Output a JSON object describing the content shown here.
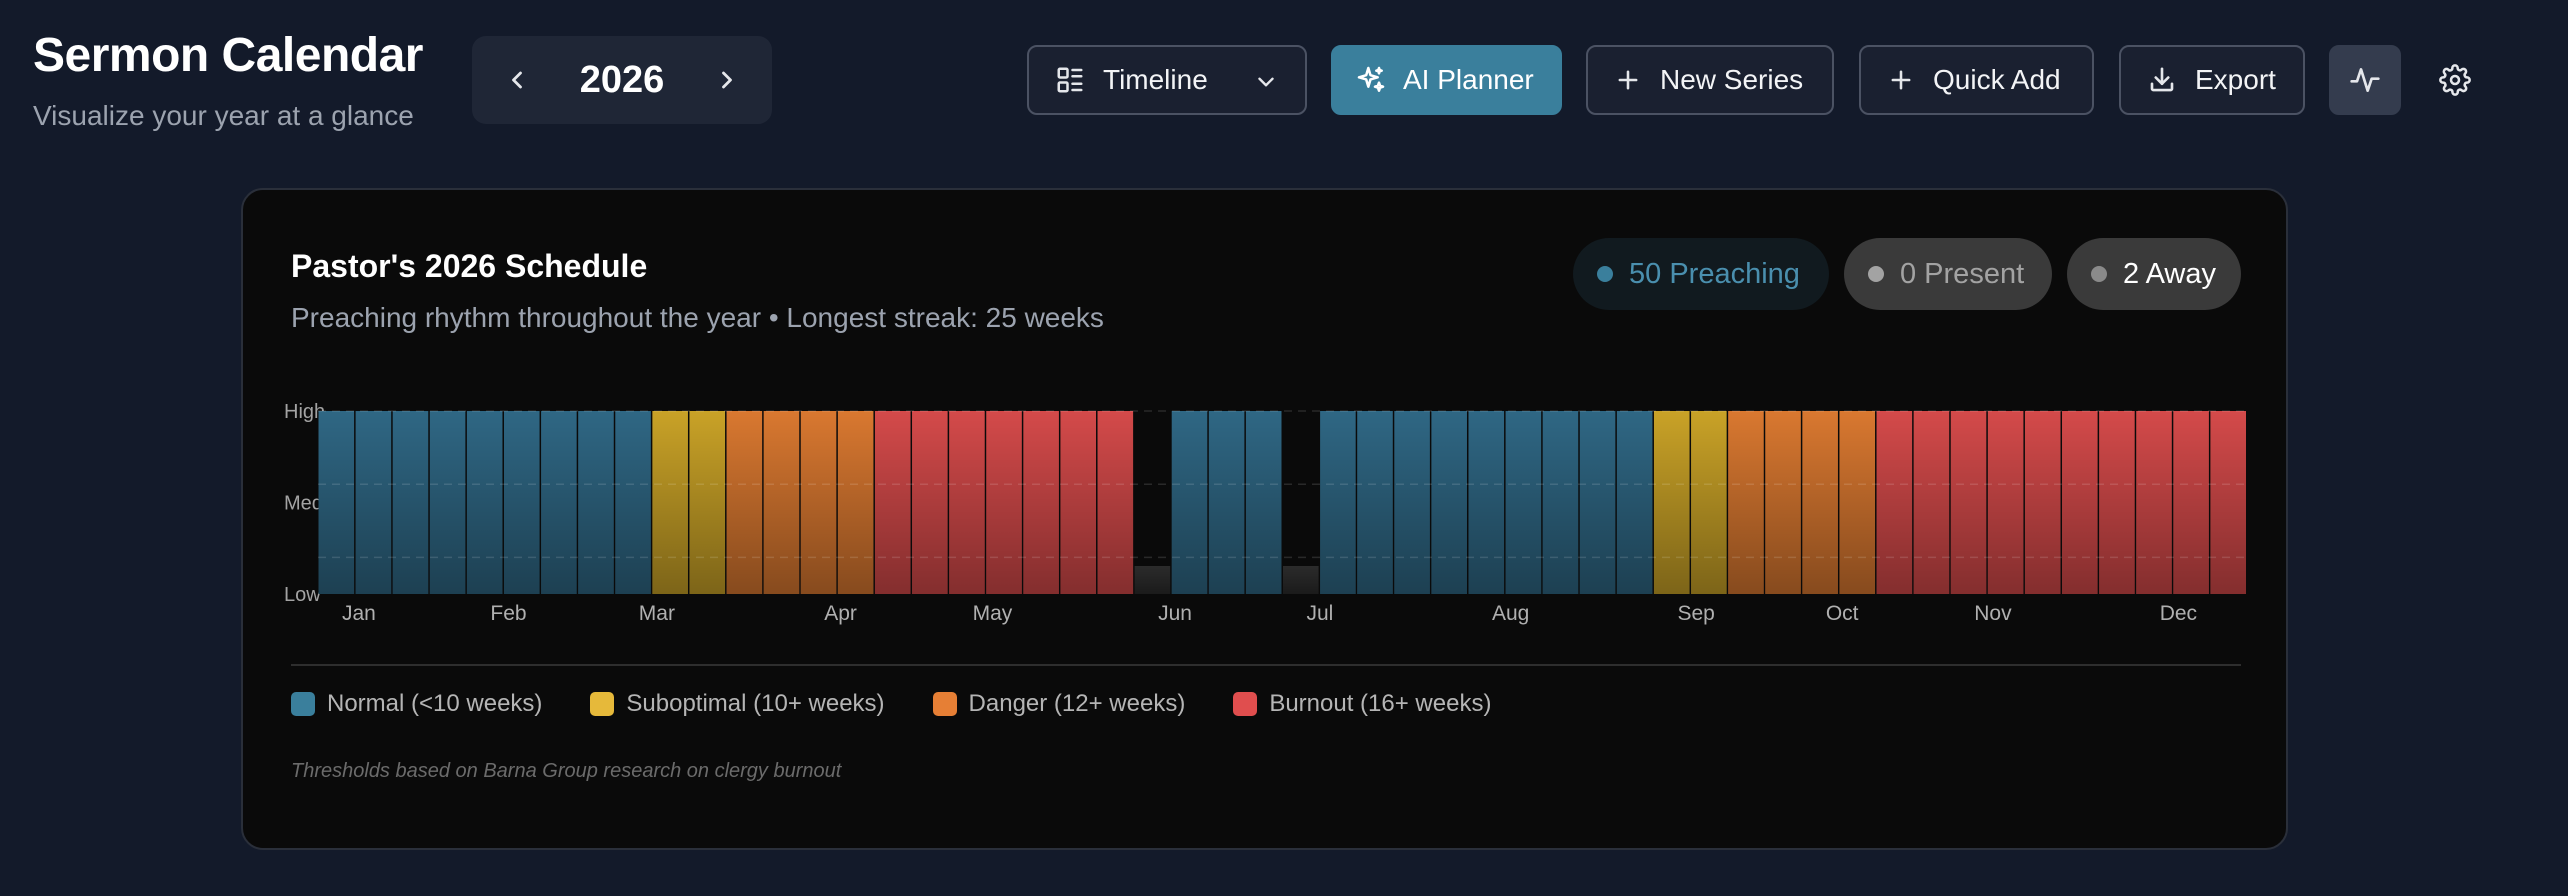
{
  "header": {
    "title": "Sermon Calendar",
    "subtitle": "Visualize your year at a glance"
  },
  "year_nav": {
    "year": "2026",
    "prev_icon": "chevron-left-icon",
    "next_icon": "chevron-right-icon"
  },
  "toolbar": {
    "view_select": {
      "label": "Timeline",
      "icon": "layout-list-icon"
    },
    "ai_planner_label": "AI Planner",
    "new_series_label": "New Series",
    "quick_add_label": "Quick Add",
    "export_label": "Export",
    "activity_icon": "activity-icon",
    "settings_icon": "gear-icon"
  },
  "colors": {
    "normal": "#2f6784",
    "suboptimal": "#c9a227",
    "danger": "#d97830",
    "burnout": "#d44a4a",
    "away": "#2b2b2b",
    "accent": "#3a7f9c"
  },
  "card": {
    "title": "Pastor's 2026 Schedule",
    "subtitle": "Preaching rhythm throughout the year • Longest streak: 25 weeks",
    "pills": {
      "preaching": "50 Preaching",
      "present": "0 Present",
      "away": "2 Away"
    },
    "legend": [
      {
        "label": "Normal (<10 weeks)",
        "color": "#3a7f9c"
      },
      {
        "label": "Suboptimal (10+ weeks)",
        "color": "#e6b93a"
      },
      {
        "label": "Danger (12+ weeks)",
        "color": "#e67f35"
      },
      {
        "label": "Burnout (16+ weeks)",
        "color": "#e04e4e"
      }
    ],
    "footnote": "Thresholds based on Barna Group research on clergy burnout"
  },
  "chart_data": {
    "type": "bar",
    "y_levels": [
      "Low",
      "Med",
      "High"
    ],
    "months": [
      "Jan",
      "Feb",
      "Mar",
      "Apr",
      "May",
      "Jun",
      "Jul",
      "Aug",
      "Sep",
      "Oct",
      "Nov",
      "Dec"
    ],
    "month_start_weeks": [
      0,
      4,
      8,
      13,
      17,
      22,
      26,
      31,
      36,
      40,
      44,
      49
    ],
    "weeks": [
      "normal",
      "normal",
      "normal",
      "normal",
      "normal",
      "normal",
      "normal",
      "normal",
      "normal",
      "suboptimal",
      "suboptimal",
      "danger",
      "danger",
      "danger",
      "danger",
      "burnout",
      "burnout",
      "burnout",
      "burnout",
      "burnout",
      "burnout",
      "burnout",
      "away",
      "normal",
      "normal",
      "normal",
      "away",
      "normal",
      "normal",
      "normal",
      "normal",
      "normal",
      "normal",
      "normal",
      "normal",
      "normal",
      "suboptimal",
      "suboptimal",
      "danger",
      "danger",
      "danger",
      "danger",
      "burnout",
      "burnout",
      "burnout",
      "burnout",
      "burnout",
      "burnout",
      "burnout",
      "burnout",
      "burnout",
      "burnout"
    ],
    "grid": true
  }
}
